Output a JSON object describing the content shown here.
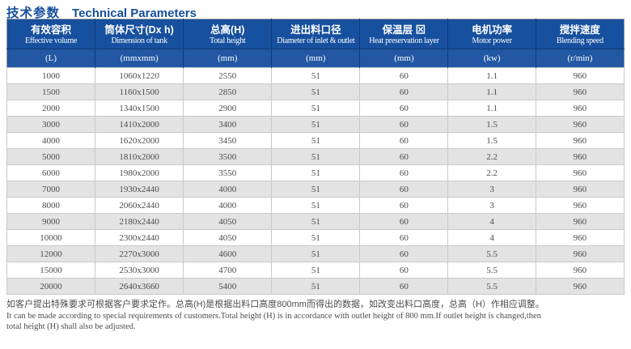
{
  "title": {
    "zh": "技术参数",
    "en": "Technical Parameters"
  },
  "colors": {
    "title_blue": "#164f9e",
    "header_bg": "#17509e",
    "unit_band_bg": "#2257a3",
    "header_divider": "#0e3a78",
    "row_stripe": "#e3e3e3",
    "cell_border": "#c9c9c9",
    "body_text": "#4c4c4c"
  },
  "table": {
    "columns": [
      {
        "zh": "有效容积",
        "en": "Effective volume",
        "unit": "(L)"
      },
      {
        "zh": "筒体尺寸(Dx h)",
        "en": "Dimension of tank",
        "unit": "(mmxmm)"
      },
      {
        "zh": "总高(H)",
        "en": "Total height",
        "unit": "(mm)"
      },
      {
        "zh": "进出料口径",
        "en": "Diameter of inlet & outlet",
        "unit": "(mm)"
      },
      {
        "zh": "保温层 ⊠",
        "en": "Heat preservation layer",
        "unit": "(mm)"
      },
      {
        "zh": "电机功率",
        "en": "Motor power",
        "unit": "(kw)"
      },
      {
        "zh": "搅拌速度",
        "en": "Blending speed",
        "unit": "(r/min)"
      }
    ],
    "rows": [
      [
        "1000",
        "1060x1220",
        "2550",
        "51",
        "60",
        "1.1",
        "960"
      ],
      [
        "1500",
        "1160x1500",
        "2850",
        "51",
        "60",
        "1.1",
        "960"
      ],
      [
        "2000",
        "1340x1500",
        "2900",
        "51",
        "60",
        "1.1",
        "960"
      ],
      [
        "3000",
        "1410x2000",
        "3400",
        "51",
        "60",
        "1.5",
        "960"
      ],
      [
        "4000",
        "1620x2000",
        "3450",
        "51",
        "60",
        "1.5",
        "960"
      ],
      [
        "5000",
        "1810x2000",
        "3500",
        "51",
        "60",
        "2.2",
        "960"
      ],
      [
        "6000",
        "1980x2000",
        "3550",
        "51",
        "60",
        "2.2",
        "960"
      ],
      [
        "7000",
        "1930x2440",
        "4000",
        "51",
        "60",
        "3",
        "960"
      ],
      [
        "8000",
        "2060x2440",
        "4000",
        "51",
        "60",
        "3",
        "960"
      ],
      [
        "9000",
        "2180x2440",
        "4050",
        "51",
        "60",
        "4",
        "960"
      ],
      [
        "10000",
        "2300x2440",
        "4050",
        "51",
        "60",
        "4",
        "960"
      ],
      [
        "12000",
        "2270x3000",
        "4600",
        "51",
        "60",
        "5.5",
        "960"
      ],
      [
        "15000",
        "2530x3000",
        "4700",
        "51",
        "60",
        "5.5",
        "960"
      ],
      [
        "20000",
        "2640x3660",
        "5400",
        "51",
        "60",
        "5.5",
        "960"
      ]
    ]
  },
  "footer": {
    "zh": "如客户提出特殊要求可根据客户要求定作。总高(H)是根据出料口高度800mm而得出的数据，如改变出料口高度，总高（H）作相应调整。",
    "en_line1": "It can be made according to special requirements of customers.Total height (H) is in accordance with outlet height of 800 mm.If outlet height is changed,then",
    "en_line2": "total height (H) shall also be adjusted."
  }
}
